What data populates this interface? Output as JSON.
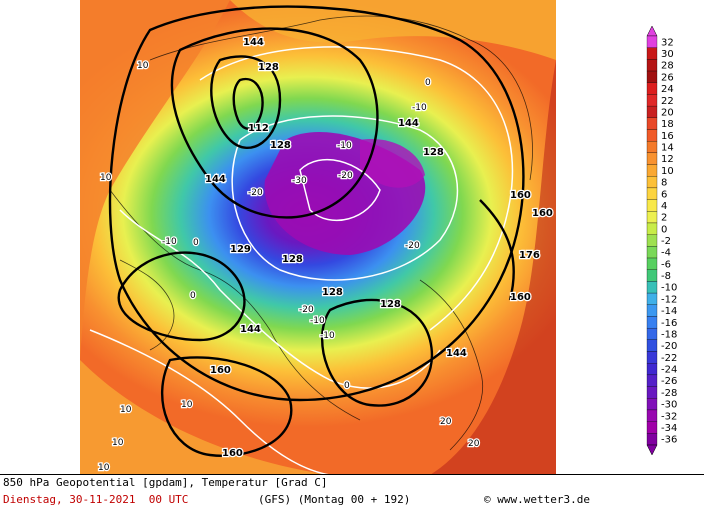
{
  "caption": {
    "line1": "850 hPa Geopotential [gpdam], Temperatur [Grad C]",
    "date": "Dienstag, 30-11-2021  00 UTC",
    "model": "(GFS)  (Montag 00 + 192)",
    "copyright": "© www.wetter3.de"
  },
  "legend": {
    "labels": [
      "32",
      "30",
      "28",
      "26",
      "24",
      "22",
      "20",
      "18",
      "16",
      "14",
      "12",
      "10",
      "8",
      "6",
      "4",
      "2",
      "0",
      "-2",
      "-4",
      "-6",
      "-8",
      "-10",
      "-12",
      "-14",
      "-16",
      "-18",
      "-20",
      "-22",
      "-24",
      "-26",
      "-28",
      "-30",
      "-32",
      "-34",
      "-36"
    ],
    "colors": [
      "#e040e0",
      "#c81818",
      "#b41414",
      "#a01010",
      "#dc1e1e",
      "#e02828",
      "#c82020",
      "#e84828",
      "#f05a28",
      "#f47a2a",
      "#f89230",
      "#faa832",
      "#fcc038",
      "#fcd440",
      "#f8e84a",
      "#ecf050",
      "#c8ec48",
      "#9ee050",
      "#7ad858",
      "#58d060",
      "#40c878",
      "#38c0b8",
      "#40b0e8",
      "#3c98f0",
      "#3880f0",
      "#3468e8",
      "#3050e0",
      "#3838d8",
      "#4028d0",
      "#5420c8",
      "#6818c0",
      "#8010b8",
      "#9808b0",
      "#a000a8",
      "#8000a0"
    ]
  },
  "map": {
    "contour_labels": [
      {
        "text": "144",
        "cls": "geo"
      },
      {
        "text": "128",
        "cls": "geo"
      },
      {
        "text": "112",
        "cls": "geo"
      },
      {
        "text": "128",
        "cls": "geo"
      },
      {
        "text": "144",
        "cls": "geo"
      },
      {
        "text": "128",
        "cls": "geo"
      },
      {
        "text": "144",
        "cls": "geo"
      },
      {
        "text": "160",
        "cls": "geo"
      },
      {
        "text": "160",
        "cls": "geo"
      },
      {
        "text": "176",
        "cls": "geo"
      },
      {
        "text": "160",
        "cls": "geo"
      },
      {
        "text": "144",
        "cls": "geo"
      },
      {
        "text": "128",
        "cls": "geo"
      },
      {
        "text": "144",
        "cls": "geo"
      },
      {
        "text": "129",
        "cls": "geo"
      },
      {
        "text": "128",
        "cls": "geo"
      },
      {
        "text": "128",
        "cls": "geo"
      },
      {
        "text": "160",
        "cls": "geo"
      },
      {
        "text": "160",
        "cls": "geo"
      },
      {
        "text": "10",
        "cls": "t"
      },
      {
        "text": "10",
        "cls": "t"
      },
      {
        "text": "10",
        "cls": "t"
      },
      {
        "text": "0",
        "cls": "t"
      },
      {
        "text": "-10",
        "cls": "t"
      },
      {
        "text": "-20",
        "cls": "t"
      },
      {
        "text": "-30",
        "cls": "t"
      },
      {
        "text": "-20",
        "cls": "t"
      },
      {
        "text": "-10",
        "cls": "t"
      },
      {
        "text": "0",
        "cls": "t"
      },
      {
        "text": "10",
        "cls": "t"
      },
      {
        "text": "20",
        "cls": "t"
      },
      {
        "text": "20",
        "cls": "t"
      },
      {
        "text": "-10",
        "cls": "t"
      },
      {
        "text": "-20",
        "cls": "t"
      },
      {
        "text": "-10",
        "cls": "t"
      },
      {
        "text": "0",
        "cls": "t"
      },
      {
        "text": "10",
        "cls": "t"
      },
      {
        "text": "10",
        "cls": "t"
      },
      {
        "text": "-20",
        "cls": "t"
      },
      {
        "text": "-10",
        "cls": "t"
      },
      {
        "text": "0",
        "cls": "t"
      }
    ]
  }
}
